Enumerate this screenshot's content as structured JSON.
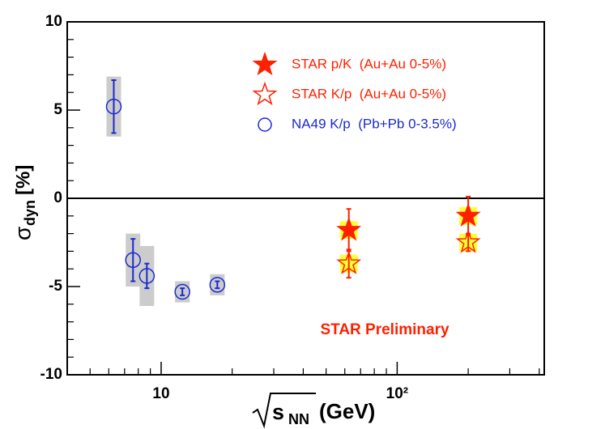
{
  "chart_data": {
    "type": "scatter",
    "log_x": true,
    "xlim": [
      4,
      420
    ],
    "ylim": [
      -10,
      10
    ],
    "xticks": [
      10,
      {
        "value": 100,
        "label": "10²"
      }
    ],
    "xminorticks": [
      5,
      6,
      7,
      8,
      9,
      20,
      30,
      40,
      50,
      60,
      70,
      80,
      90,
      200,
      300,
      400
    ],
    "yticks": [
      -10,
      -5,
      0,
      5,
      10
    ],
    "yminorticks": [
      -9,
      -8,
      -7,
      -6,
      -4,
      -3,
      -2,
      -1,
      1,
      2,
      3,
      4,
      6,
      7,
      8,
      9
    ],
    "hline": 0,
    "x_label": {
      "base": "s",
      "sub": "NN",
      "unit": "(GeV)"
    },
    "y_label": {
      "base": "σ",
      "sub": "dyn",
      "unit": "[%]"
    },
    "annotation": "STAR Preliminary",
    "legend": "top-right",
    "series": [
      {
        "name": "STAR p/K  (Au+Au 0-5%)",
        "marker": "filled-star",
        "color": "#ff2000",
        "sys_color": "#ffff33",
        "x": [
          62.4,
          200
        ],
        "values": [
          -1.8,
          -1.0
        ],
        "errors": [
          1.2,
          1.1
        ],
        "sys_errors": [
          0.5,
          0.5
        ]
      },
      {
        "name": "STAR K/p  (Au+Au 0-5%)",
        "marker": "open-star",
        "color": "#ff2000",
        "sys_color": "#ffff33",
        "x": [
          62.4,
          200
        ],
        "values": [
          -3.7,
          -2.5
        ],
        "errors": [
          0.8,
          0.5
        ],
        "sys_errors": [
          0.5,
          0.5
        ]
      },
      {
        "name": "NA49 K/p  (Pb+Pb 0-3.5%)",
        "marker": "open-circle",
        "color": "#1a2ad0",
        "sys_color": "#cccccc",
        "x": [
          6.3,
          7.6,
          8.7,
          12.3,
          17.3
        ],
        "values": [
          5.2,
          -3.5,
          -4.4,
          -5.3,
          -4.9
        ],
        "errors": [
          1.5,
          1.2,
          0.7,
          0.2,
          0.2
        ],
        "sys_errors": [
          1.7,
          1.5,
          1.7,
          0.6,
          0.6
        ]
      }
    ]
  }
}
